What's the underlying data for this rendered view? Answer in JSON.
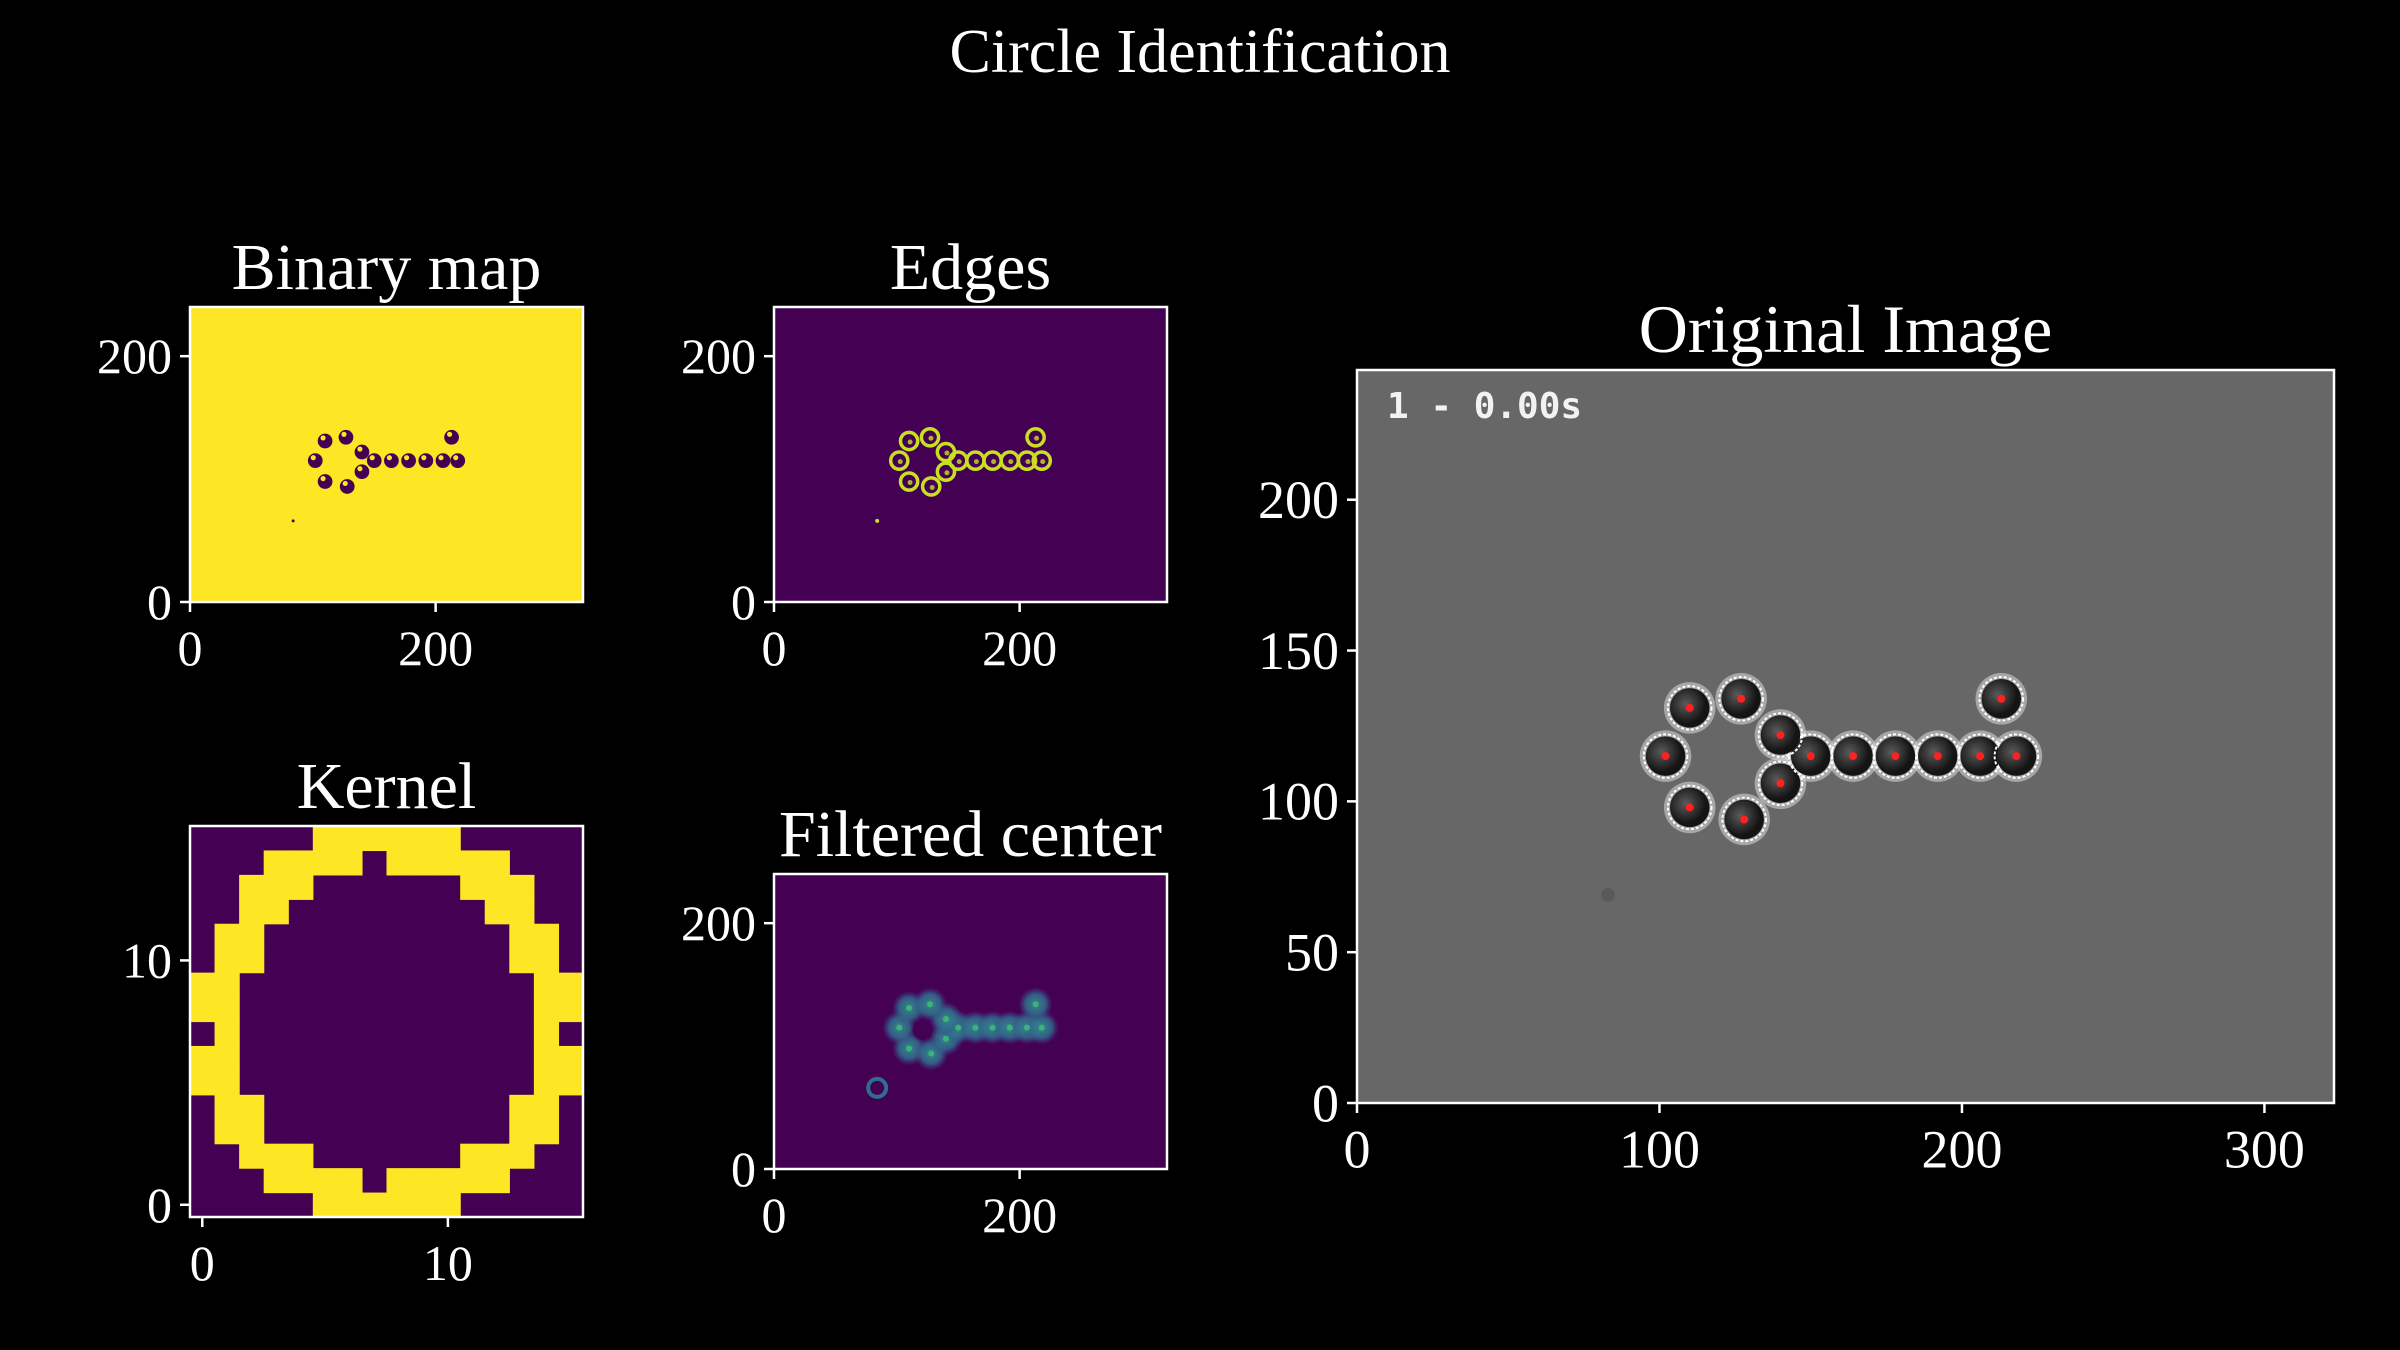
{
  "figure": {
    "title": "Circle Identification",
    "background": "#000000",
    "foreground": "#ffffff"
  },
  "chart_data": [
    {
      "type": "heatmap",
      "title": "Binary map",
      "xlabel": "",
      "ylabel": "",
      "xlim": [
        0,
        320
      ],
      "ylim": [
        240,
        0
      ],
      "xticks": [
        0,
        200
      ],
      "yticks": [
        0,
        200
      ],
      "background_color": "#fde725",
      "feature_color": "#440154",
      "blobs": [
        [
          110,
          98
        ],
        [
          128,
          94
        ],
        [
          140,
          106
        ],
        [
          102,
          115
        ],
        [
          150,
          115
        ],
        [
          164,
          115
        ],
        [
          178,
          115
        ],
        [
          192,
          115
        ],
        [
          206,
          115
        ],
        [
          218,
          115
        ],
        [
          140,
          122
        ],
        [
          110,
          131
        ],
        [
          127,
          134
        ],
        [
          213,
          134
        ]
      ],
      "blob_radius": 6,
      "speck": [
        84,
        66
      ]
    },
    {
      "type": "heatmap",
      "title": "Edges",
      "xlabel": "",
      "ylabel": "",
      "xlim": [
        0,
        320
      ],
      "ylim": [
        240,
        0
      ],
      "xticks": [
        0,
        200
      ],
      "yticks": [
        0,
        200
      ],
      "background_color": "#440154",
      "feature_color": "#c8e020",
      "blobs": [
        [
          110,
          98
        ],
        [
          128,
          94
        ],
        [
          140,
          106
        ],
        [
          102,
          115
        ],
        [
          150,
          115
        ],
        [
          164,
          115
        ],
        [
          178,
          115
        ],
        [
          192,
          115
        ],
        [
          206,
          115
        ],
        [
          218,
          115
        ],
        [
          140,
          122
        ],
        [
          110,
          131
        ],
        [
          127,
          134
        ],
        [
          213,
          134
        ]
      ],
      "blob_radius": 7,
      "speck": [
        84,
        66
      ]
    },
    {
      "type": "heatmap",
      "title": "Kernel",
      "xlabel": "",
      "ylabel": "",
      "xlim": [
        -0.5,
        15.5
      ],
      "ylim": [
        15.5,
        -0.5
      ],
      "xticks": [
        0,
        10
      ],
      "yticks": [
        0,
        10
      ],
      "size": 16,
      "low_color": "#440154",
      "high_color": "#fde725",
      "rows": [
        "0000011111100000",
        "0001111011111000",
        "0011100000011100",
        "0011000000001100",
        "0110000000000110",
        "0110000000000110",
        "1100000000000011",
        "1100000000000011",
        "0100000000000010",
        "1100000000000011",
        "1100000000000011",
        "0110000000000110",
        "0110000000000110",
        "0011100000011100",
        "0001111011111000",
        "0000011111100000"
      ]
    },
    {
      "type": "heatmap",
      "title": "Filtered center",
      "xlabel": "",
      "ylabel": "",
      "xlim": [
        0,
        320
      ],
      "ylim": [
        240,
        0
      ],
      "xticks": [
        0,
        200
      ],
      "yticks": [
        0,
        200
      ],
      "background_color": "#440154",
      "glow_color": "#2e6f8e",
      "peak_color": "#35b779",
      "blobs": [
        [
          110,
          98
        ],
        [
          128,
          94
        ],
        [
          140,
          106
        ],
        [
          102,
          115
        ],
        [
          150,
          115
        ],
        [
          164,
          115
        ],
        [
          178,
          115
        ],
        [
          192,
          115
        ],
        [
          206,
          115
        ],
        [
          218,
          115
        ],
        [
          140,
          122
        ],
        [
          110,
          131
        ],
        [
          127,
          134
        ],
        [
          213,
          134
        ]
      ],
      "speck": [
        84,
        66
      ]
    },
    {
      "type": "scatter",
      "title": "Original Image",
      "xlabel": "",
      "ylabel": "",
      "xlim": [
        0,
        323
      ],
      "ylim": [
        243,
        0
      ],
      "xticks": [
        0,
        100,
        200,
        300
      ],
      "yticks": [
        0,
        50,
        100,
        150,
        200
      ],
      "image_background": "#676767",
      "overlay_text": "1 - 0.00s",
      "marker_color": "#ff2020",
      "circle_color": "#ffffff",
      "detections": [
        [
          110,
          98
        ],
        [
          128,
          94
        ],
        [
          140,
          106
        ],
        [
          102,
          115
        ],
        [
          150,
          115
        ],
        [
          164,
          115
        ],
        [
          178,
          115
        ],
        [
          192,
          115
        ],
        [
          206,
          115
        ],
        [
          218,
          115
        ],
        [
          140,
          122
        ],
        [
          110,
          131
        ],
        [
          127,
          134
        ],
        [
          213,
          134
        ]
      ]
    }
  ]
}
